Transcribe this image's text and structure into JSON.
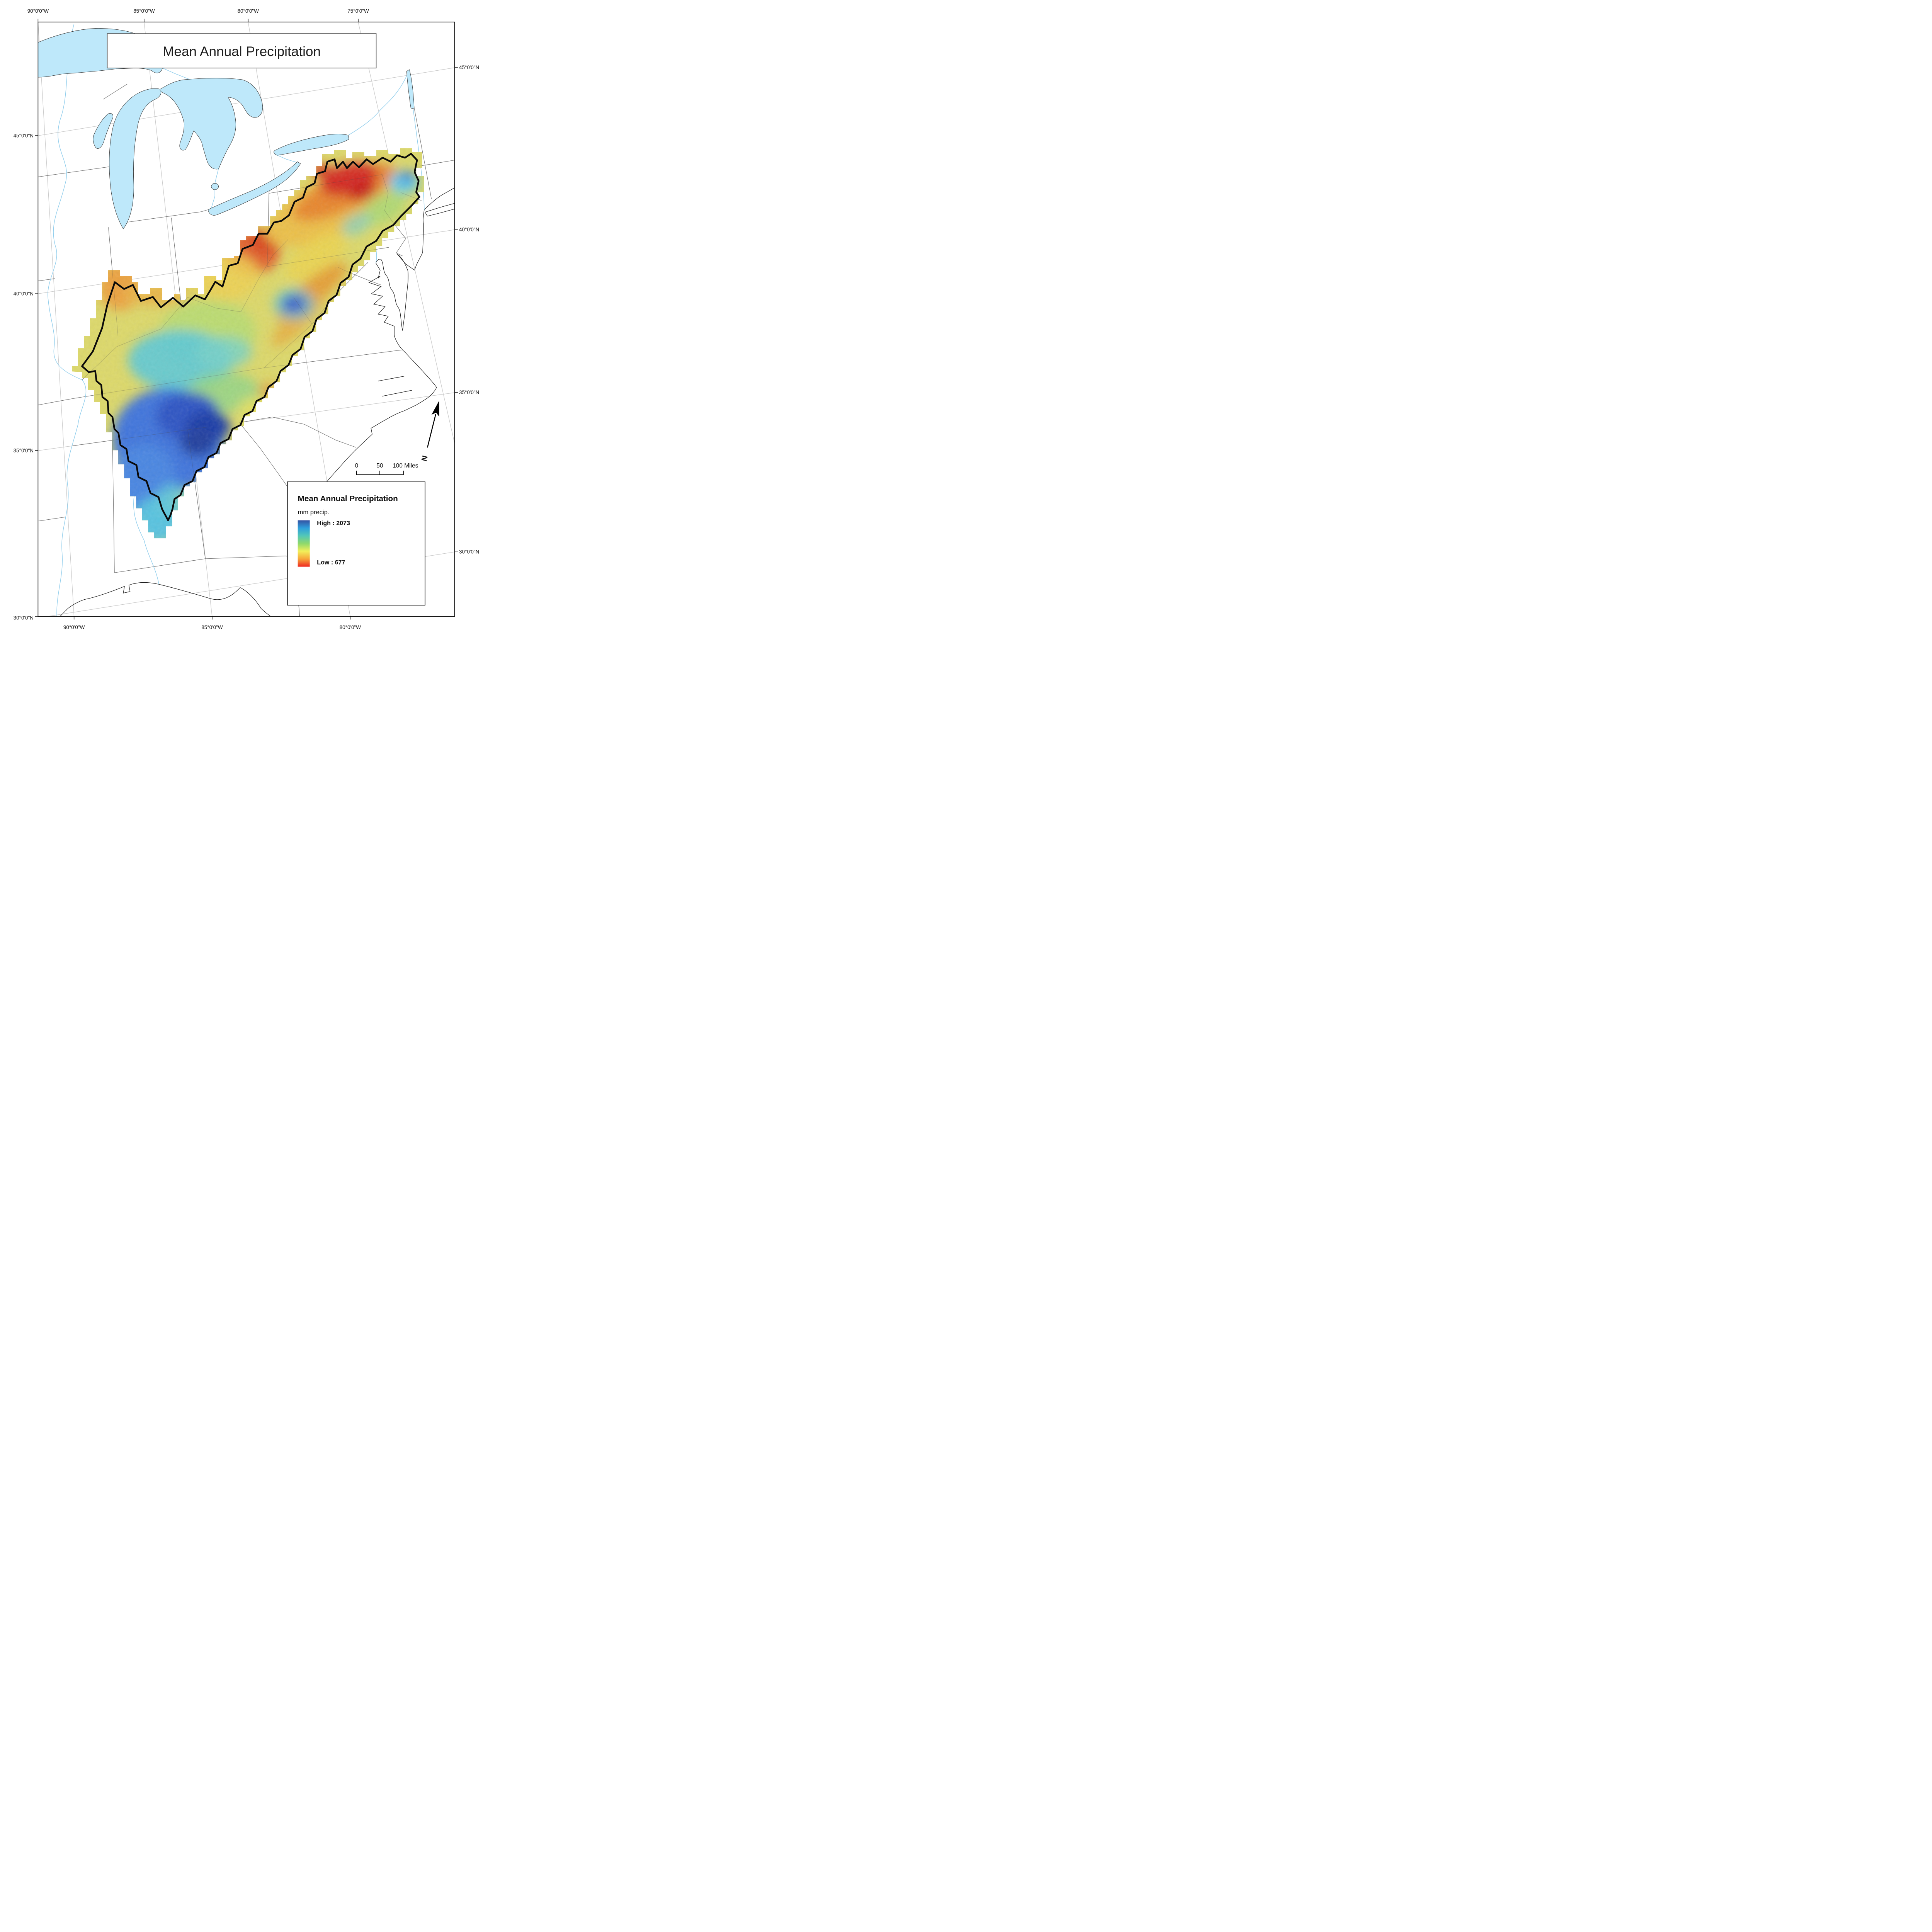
{
  "map_title": "Mean Annual Precipitation",
  "graticule": {
    "top": [
      "90°0'0\"W",
      "85°0'0\"W",
      "80°0'0\"W",
      "75°0'0\"W"
    ],
    "bottom": [
      "90°0'0\"W",
      "85°0'0\"W",
      "80°0'0\"W"
    ],
    "left": [
      "45°0'0\"N",
      "40°0'0\"N",
      "35°0'0\"N",
      "30°0'0\"N"
    ],
    "right": [
      "45°0'0\"N",
      "40°0'0\"N",
      "35°0'0\"N",
      "30°0'0\"N"
    ]
  },
  "legend": {
    "title": "Mean Annual Precipitation",
    "units_label": "mm precip.",
    "high_label": "High : 2073",
    "low_label": "Low : 677",
    "high_value": 2073,
    "low_value": 677,
    "ramp_colors_top_to_bottom": [
      "#3452a3",
      "#2e9fdc",
      "#52c7b8",
      "#8fd96b",
      "#f2ef5a",
      "#f7a63a",
      "#ee2a22"
    ]
  },
  "scale_bar": {
    "labels": [
      "0",
      "50",
      "100 Miles"
    ]
  },
  "north_arrow_label": "N",
  "colors": {
    "water": "#bee8fa",
    "study_area_outline": "#0a0a0a",
    "high_precip_blue": "#1f3ca8",
    "low_precip_red": "#d42a20"
  }
}
